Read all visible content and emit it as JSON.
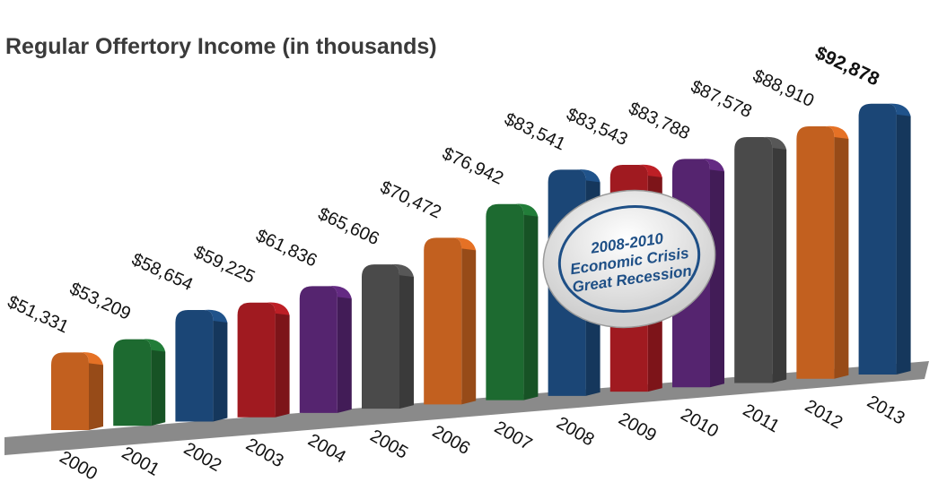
{
  "title": "Regular Offertory Income (in thousands)",
  "chart_data": {
    "type": "bar",
    "title": "Regular Offertory Income (in thousands)",
    "xlabel": "",
    "ylabel": "",
    "categories": [
      "2000",
      "2001",
      "2002",
      "2003",
      "2004",
      "2005",
      "2006",
      "2007",
      "2008",
      "2009",
      "2010",
      "2011",
      "2012",
      "2013"
    ],
    "values": [
      51331,
      53209,
      58654,
      59225,
      61836,
      65606,
      70472,
      76942,
      83541,
      83543,
      83788,
      87578,
      88910,
      92878
    ],
    "value_labels": [
      "$51,331",
      "$53,209",
      "$58,654",
      "$59,225",
      "$61,836",
      "$65,606",
      "$70,472",
      "$76,942",
      "$83,541",
      "$83,543",
      "$83,788",
      "$87,578",
      "$88,910",
      "$92,878"
    ],
    "bar_colors": [
      "#c2601f",
      "#1d6a30",
      "#1b4676",
      "#a01a20",
      "#55246f",
      "#4a4a4a",
      "#c2601f",
      "#1d6a30",
      "#1b4676",
      "#a01a20",
      "#55246f",
      "#4a4a4a",
      "#c2601f",
      "#1b4676"
    ],
    "grid": false,
    "legend": "none",
    "annotation": {
      "lines": [
        "2008-2010",
        "Economic Crisis",
        "Great Recession"
      ]
    }
  }
}
